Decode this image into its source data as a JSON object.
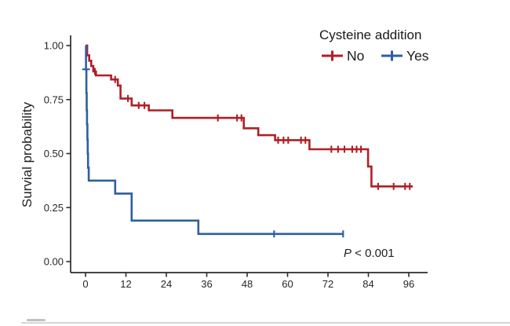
{
  "figure": {
    "y_axis_title": "Survial probability",
    "p_value_italic": "P",
    "p_value_rest": " < 0.001",
    "legend": {
      "title": "Cysteine addition",
      "items": [
        {
          "label": "No",
          "color": "#b01f26"
        },
        {
          "label": "Yes",
          "color": "#2d5f9e"
        }
      ]
    }
  },
  "chart_data": {
    "type": "line",
    "subtype": "kaplan-meier-step",
    "title": "",
    "xlabel": "",
    "ylabel": "Survial probability",
    "annotation": "P < 0.001",
    "legend_position": "top-right",
    "grid": false,
    "xlim": [
      -4,
      101
    ],
    "ylim": [
      0,
      1.05
    ],
    "x_ticks": [
      0,
      12,
      24,
      36,
      48,
      60,
      72,
      84,
      96
    ],
    "y_tick_labels": [
      "1.00",
      "0.75",
      "0.50",
      "0.25",
      "0.00"
    ],
    "y_tick_values": [
      1.0,
      0.75,
      0.5,
      0.25,
      0.0
    ],
    "series": [
      {
        "name": "No",
        "color": "#b01f26",
        "steps": [
          [
            0,
            1.0
          ],
          [
            0.5,
            0.955
          ],
          [
            1.1,
            0.93
          ],
          [
            1.7,
            0.905
          ],
          [
            2.3,
            0.88
          ],
          [
            3.1,
            0.862
          ],
          [
            7.6,
            0.843
          ],
          [
            9.6,
            0.815
          ],
          [
            10.4,
            0.755
          ],
          [
            13.7,
            0.723
          ],
          [
            18.8,
            0.7
          ],
          [
            25.8,
            0.665
          ],
          [
            47.0,
            0.617
          ],
          [
            51.3,
            0.585
          ],
          [
            56.3,
            0.562
          ],
          [
            66.5,
            0.52
          ],
          [
            83.9,
            0.44
          ],
          [
            84.9,
            0.348
          ]
        ],
        "end_t": 97.2,
        "censors": [
          [
            2.8,
            0.88,
            "v"
          ],
          [
            8.8,
            0.843,
            "v"
          ],
          [
            12.6,
            0.755,
            "v"
          ],
          [
            15.8,
            0.723,
            "v"
          ],
          [
            17.5,
            0.723,
            "v"
          ],
          [
            39.3,
            0.665,
            "v"
          ],
          [
            45.0,
            0.665,
            "v"
          ],
          [
            46.3,
            0.665,
            "v"
          ],
          [
            57.2,
            0.562,
            "v"
          ],
          [
            58.8,
            0.562,
            "v"
          ],
          [
            60.2,
            0.562,
            "v"
          ],
          [
            64.0,
            0.562,
            "v"
          ],
          [
            65.3,
            0.562,
            "v"
          ],
          [
            73.0,
            0.52,
            "v"
          ],
          [
            75.0,
            0.52,
            "v"
          ],
          [
            76.9,
            0.52,
            "v"
          ],
          [
            79.2,
            0.52,
            "v"
          ],
          [
            80.5,
            0.52,
            "v"
          ],
          [
            81.8,
            0.52,
            "v"
          ],
          [
            86.9,
            0.348,
            "v"
          ],
          [
            91.5,
            0.348,
            "v"
          ],
          [
            94.9,
            0.348,
            "v"
          ],
          [
            96.3,
            0.348,
            "v"
          ]
        ]
      },
      {
        "name": "Yes",
        "color": "#2d5f9e",
        "steps": [
          [
            0,
            1.0
          ],
          [
            0.15,
            0.89
          ],
          [
            0.25,
            0.78
          ],
          [
            0.35,
            0.7
          ],
          [
            0.45,
            0.635
          ],
          [
            0.55,
            0.565
          ],
          [
            0.65,
            0.5
          ],
          [
            0.75,
            0.435
          ],
          [
            0.95,
            0.375
          ],
          [
            8.8,
            0.315
          ],
          [
            13.7,
            0.19
          ],
          [
            33.5,
            0.128
          ]
        ],
        "end_t": 76.5,
        "censors": [
          [
            0.15,
            0.89,
            "h"
          ],
          [
            56.0,
            0.128,
            "v"
          ],
          [
            76.5,
            0.128,
            "v"
          ]
        ]
      }
    ]
  }
}
